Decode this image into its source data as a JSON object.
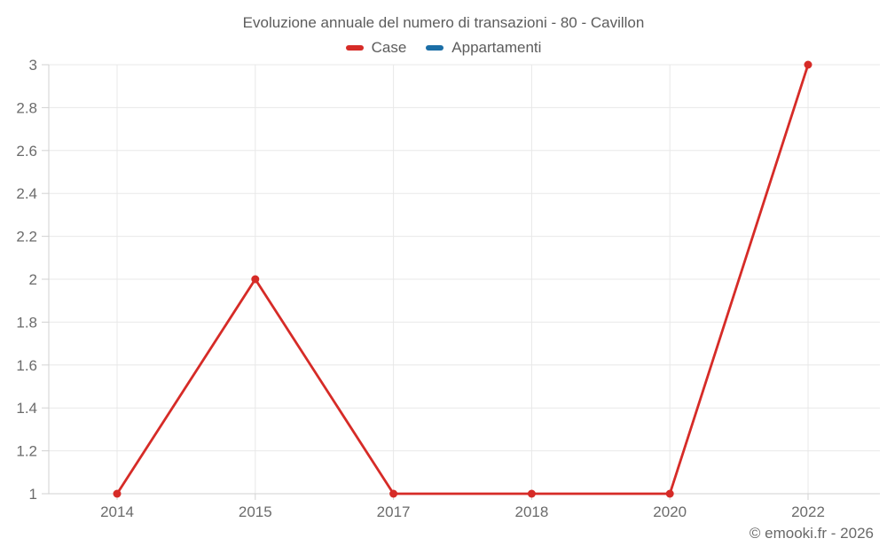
{
  "page": {
    "copyright": "© emooki.fr - 2026"
  },
  "chart_data": {
    "type": "line",
    "title": "Evoluzione annuale del numero di transazioni - 80 - Cavillon",
    "categories": [
      "2014",
      "2015",
      "2017",
      "2018",
      "2020",
      "2022"
    ],
    "series": [
      {
        "name": "Case",
        "color": "#d62b27",
        "values": [
          1,
          2,
          1,
          1,
          1,
          3
        ]
      },
      {
        "name": "Appartamenti",
        "color": "#1b6ea6",
        "values": []
      }
    ],
    "xlabel": "",
    "ylabel": "",
    "ylim": [
      1,
      3
    ],
    "yticks": [
      1,
      1.2,
      1.4,
      1.6,
      1.8,
      2,
      2.2,
      2.4,
      2.6,
      2.8,
      3
    ],
    "grid": true,
    "legend_position": "top",
    "marker": "circle"
  },
  "colors": {
    "background": "#ffffff",
    "grid": "#e8e8e8",
    "axis": "#d2d2d2",
    "title_text": "#5c5c5c",
    "tick_text": "#6b6b6b"
  }
}
